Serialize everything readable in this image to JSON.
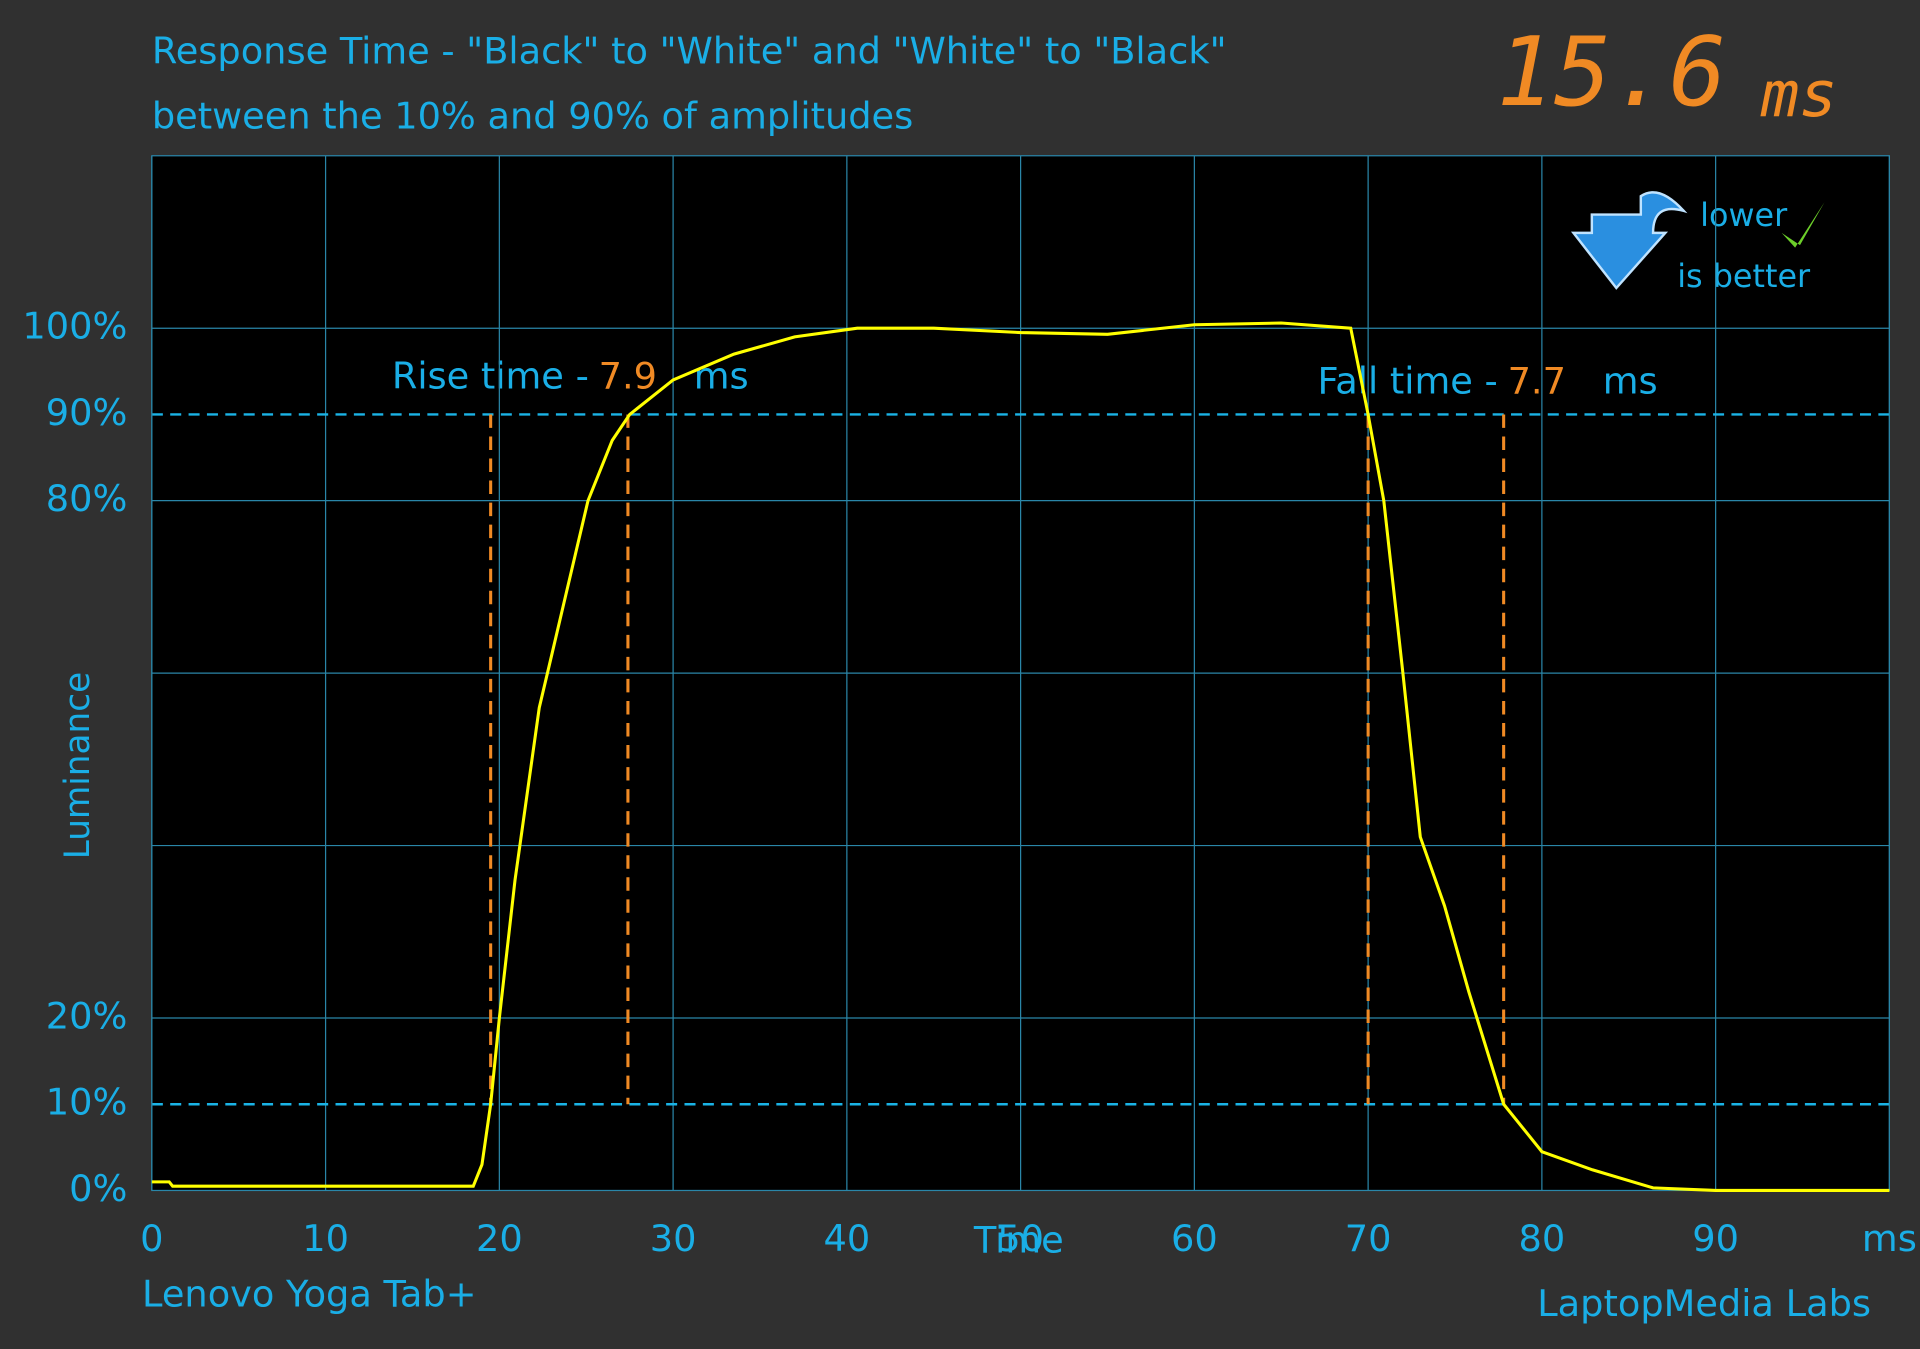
{
  "chart_data": {
    "type": "line",
    "title": "Response Time - \"Black\" to \"White\" and \"White\" to \"Black\"",
    "subtitle": "between the 10% and 90% of amplitudes",
    "total": 15.6,
    "total_unit": "ms",
    "xlabel": "Time",
    "ylabel": "Luminance",
    "device": "Lenovo Yoga Tab+",
    "source": "LaptopMedia Labs",
    "badge": [
      "lower",
      "is better"
    ],
    "rise_label": "Rise time -",
    "rise_time": 7.9,
    "fall_label": "Fall time -",
    "fall_time": 7.7,
    "time_unit": "ms",
    "rise_markers": [
      19.5,
      27.4
    ],
    "fall_markers": [
      70,
      77.8
    ],
    "xlim": [
      0,
      100
    ],
    "ylim": [
      0,
      120
    ],
    "xticks": [
      0,
      10,
      20,
      30,
      40,
      50,
      60,
      70,
      80,
      90,
      {
        "value": 100,
        "label": "ms"
      }
    ],
    "yticks": [
      {
        "value": 0,
        "label": "0%"
      },
      {
        "value": 10,
        "label": "10%"
      },
      {
        "value": 20,
        "label": "20%"
      },
      {
        "value": 80,
        "label": "80%"
      },
      {
        "value": 90,
        "label": "90%"
      },
      {
        "value": 100,
        "label": "100%"
      }
    ],
    "ygrid": [
      20,
      40,
      60,
      80,
      100
    ],
    "dashed_lines": [
      10,
      90
    ],
    "series": [
      {
        "name": "Luminance",
        "color": "#ffff00",
        "x": [
          0,
          1,
          1.2,
          18.5,
          19,
          19.5,
          20,
          20.9,
          22.3,
          23,
          23.7,
          25.1,
          26.5,
          27.5,
          30,
          33.5,
          37,
          40.6,
          45,
          50,
          55,
          60,
          65,
          69,
          70,
          70.9,
          72,
          73,
          74.4,
          75.8,
          77.8,
          80,
          82.9,
          86.4,
          90,
          100
        ],
        "values": [
          1,
          1,
          0.5,
          0.5,
          3,
          10,
          20,
          36,
          56,
          62,
          68,
          80,
          87,
          90,
          94,
          97,
          99,
          100,
          100,
          99.5,
          99.3,
          100.4,
          100.6,
          100,
          90,
          80,
          60,
          41,
          33,
          23,
          10,
          4.5,
          2.4,
          0.3,
          0,
          0
        ]
      }
    ]
  }
}
